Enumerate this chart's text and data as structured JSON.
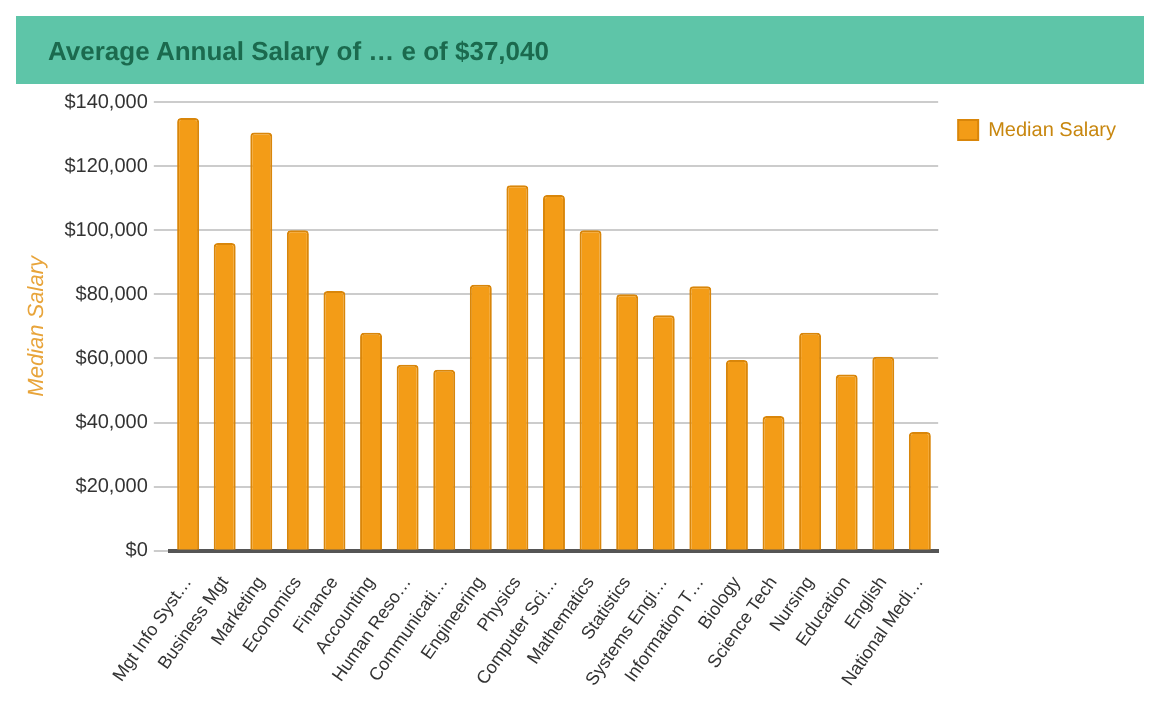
{
  "chart_data": {
    "type": "bar",
    "title": "Average Annual Salary of … e of $37,040",
    "ylabel": "Median Salary",
    "categories": [
      "Mgt Info Syst…",
      "Business Mgt",
      "Marketing",
      "Economics",
      "Finance",
      "Accounting",
      "Human Reso…",
      "Communicati…",
      "Engineering",
      "Physics",
      "Computer Sci…",
      "Mathematics",
      "Statistics",
      "Systems Engi…",
      "Information T…",
      "Biology",
      "Science Tech",
      "Nursing",
      "Education",
      "English",
      "National Medi…"
    ],
    "series": [
      {
        "name": "Median Salary",
        "color": "#f39c17",
        "values": [
          135000,
          96000,
          130500,
          100000,
          81000,
          68000,
          58000,
          56500,
          83000,
          114000,
          111000,
          100000,
          80000,
          73500,
          82500,
          59500,
          42000,
          68000,
          55000,
          60500,
          37000
        ]
      }
    ],
    "ylim": [
      0,
      140000
    ],
    "yticks": [
      {
        "value": 0,
        "label": "$0"
      },
      {
        "value": 20000,
        "label": "$20,000"
      },
      {
        "value": 40000,
        "label": "$40,000"
      },
      {
        "value": 60000,
        "label": "$60,000"
      },
      {
        "value": 80000,
        "label": "$80,000"
      },
      {
        "value": 100000,
        "label": "$100,000"
      },
      {
        "value": 120000,
        "label": "$120,000"
      },
      {
        "value": 140000,
        "label": "$140,000"
      }
    ],
    "grid": "y",
    "legend": "top right"
  }
}
